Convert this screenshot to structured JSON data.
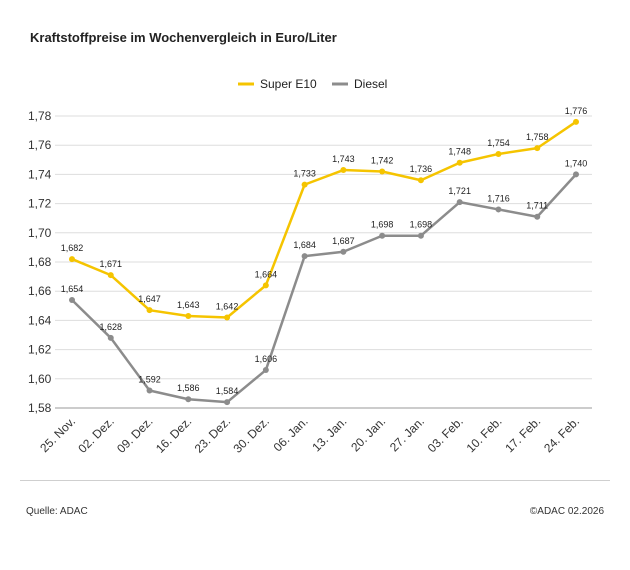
{
  "header": {
    "title": "Kraftstoffpreise im Wochenvergleich in Euro/Liter"
  },
  "footer": {
    "source": "Quelle: ADAC",
    "copyright": "©ADAC 02.2026"
  },
  "chart_data": {
    "type": "line",
    "title": "Kraftstoffpreise im Wochenvergleich in Euro/Liter",
    "xlabel": "",
    "ylabel": "",
    "categories": [
      "25. Nov.",
      "02. Dez.",
      "09. Dez.",
      "16. Dez.",
      "23. Dez.",
      "30. Dez.",
      "06. Jan.",
      "13. Jan.",
      "20. Jan.",
      "27. Jan.",
      "03. Feb.",
      "10. Feb.",
      "17. Feb.",
      "24. Feb."
    ],
    "series": [
      {
        "name": "Super E10",
        "color": "#f5c400",
        "values": [
          1.682,
          1.671,
          1.647,
          1.643,
          1.642,
          1.664,
          1.733,
          1.743,
          1.742,
          1.736,
          1.748,
          1.754,
          1.758,
          1.776
        ],
        "labels": [
          "1,682",
          "1,671",
          "1,647",
          "1,643",
          "1,642",
          "1,664",
          "1,733",
          "1,743",
          "1,742",
          "1,736",
          "1,748",
          "1,754",
          "1,758",
          "1,776"
        ]
      },
      {
        "name": "Diesel",
        "color": "#8c8c8c",
        "values": [
          1.654,
          1.628,
          1.592,
          1.586,
          1.584,
          1.606,
          1.684,
          1.687,
          1.698,
          1.698,
          1.721,
          1.716,
          1.711,
          1.74
        ],
        "labels": [
          "1,654",
          "1,628",
          "1,592",
          "1,586",
          "1,584",
          "1,606",
          "1,684",
          "1,687",
          "1,698",
          "1,698",
          "1,721",
          "1,716",
          "1,711",
          "1,740"
        ]
      }
    ],
    "ylim": [
      1.58,
      1.78
    ],
    "yticks": [
      1.78,
      1.76,
      1.74,
      1.72,
      1.7,
      1.68,
      1.66,
      1.64,
      1.62,
      1.6,
      1.58
    ],
    "ytick_labels": [
      "1,78",
      "1,76",
      "1,74",
      "1,72",
      "1,70",
      "1,68",
      "1,66",
      "1,64",
      "1,62",
      "1,60",
      "1,58"
    ],
    "grid": true,
    "legend": "top-right"
  }
}
